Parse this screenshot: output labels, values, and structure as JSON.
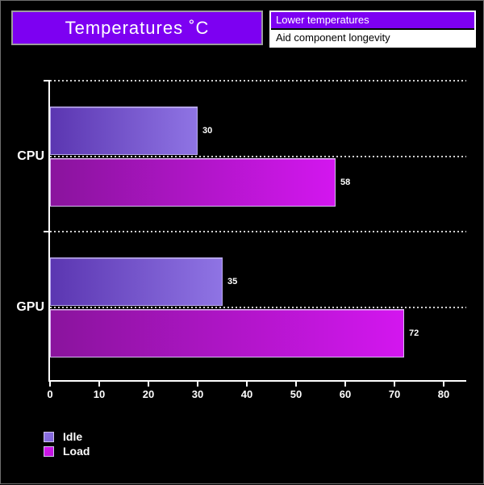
{
  "page": {
    "background": "#000000",
    "border_color": "#6e6e6e"
  },
  "title_box": {
    "label": "Temperatures ˚C",
    "bg": "#7d00f2",
    "border": "#9d9d9d",
    "text_color": "#ffffff"
  },
  "callout": {
    "header_label": "Lower temperatures",
    "header_bg": "#7d00f2",
    "header_text_color": "#ffffff",
    "body_label": "Aid component longevity",
    "body_bg": "#ffffff",
    "body_text_color": "#000000",
    "border": "#ffffff"
  },
  "chart_data": {
    "type": "bar",
    "orientation": "horizontal",
    "title": "Temperatures ˚C",
    "xlabel": "",
    "ylabel": "",
    "categories": [
      "CPU",
      "GPU"
    ],
    "series": [
      {
        "name": "Idle",
        "values": [
          30,
          35
        ],
        "gradient": [
          "#5b36b1",
          "#8f74e4"
        ],
        "border": "#b9a8ee",
        "swatch": "#7e62d8"
      },
      {
        "name": "Load",
        "values": [
          58,
          72
        ],
        "gradient": [
          "#8a149d",
          "#d316ef"
        ],
        "border": "#d9b6f2",
        "swatch": "#c013dd"
      }
    ],
    "value_labels": [
      [
        30,
        35
      ],
      [
        58,
        72
      ]
    ],
    "xticks": [
      0,
      10,
      20,
      30,
      40,
      50,
      60,
      70,
      80
    ],
    "xlim": [
      0,
      84.6
    ],
    "grid": "dotted horizontal lines at group tops and category centers",
    "grid_color": "#cfcfcf",
    "axis_color": "#ffffff",
    "text_color": "#ffffff",
    "legend_position": "bottom-left",
    "legend_entries": [
      "Idle",
      "Load"
    ]
  }
}
